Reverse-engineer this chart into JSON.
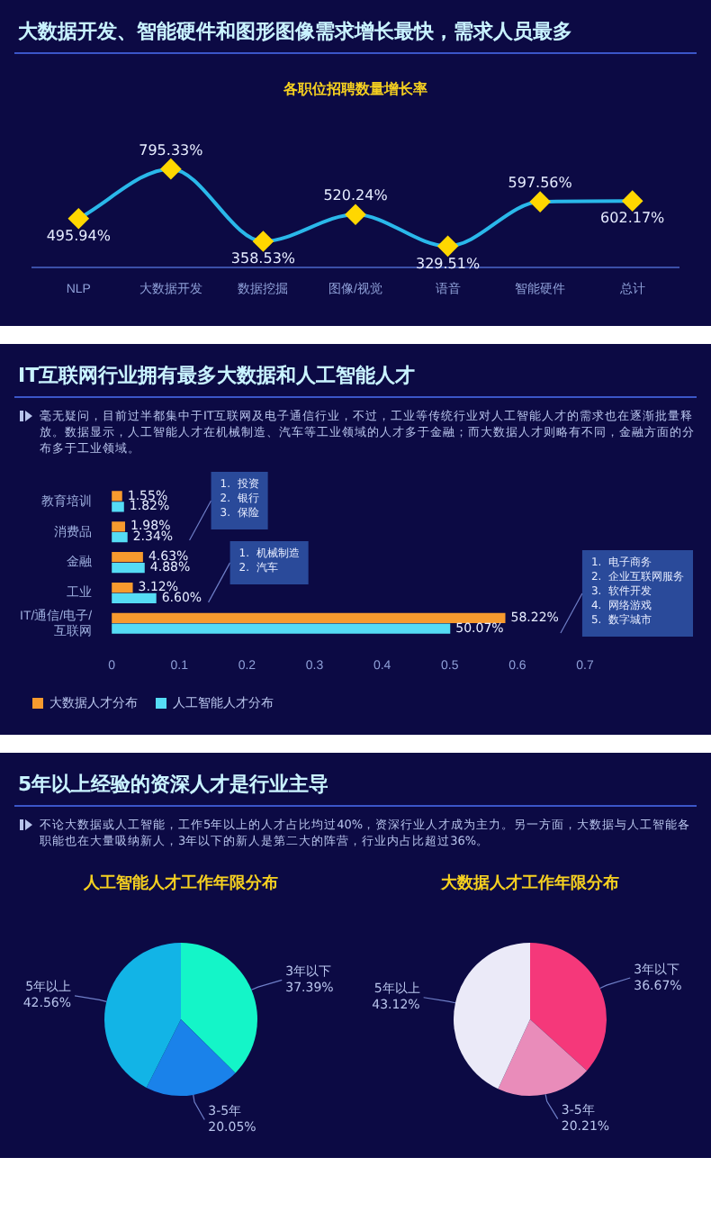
{
  "chart_data": [
    {
      "type": "line",
      "title": "大数据开发、智能硬件和图形图像需求增长最快，需求人员最多",
      "subtitle": "各职位招聘数量增长率",
      "categories": [
        "NLP",
        "大数据开发",
        "数据挖掘",
        "图像/视觉",
        "语音",
        "智能硬件",
        "总计"
      ],
      "marker": "diamond",
      "series": [
        {
          "color": "#2ab8ea",
          "colors": [
            "#ffd700",
            "#ffd700",
            "#ffd700",
            "#ffd700",
            "#ffd700",
            "#ffd700",
            "#ffd700"
          ],
          "values": [
            495.94,
            795.33,
            358.53,
            520.24,
            329.51,
            597.56,
            602.17
          ],
          "value_labels": [
            "495.94%",
            "795.33%",
            "358.53%",
            "520.24%",
            "329.51%",
            "597.56%",
            "602.17%"
          ]
        }
      ]
    },
    {
      "type": "bar",
      "orientation": "horizontal",
      "title": "IT互联网行业拥有最多大数据和人工智能人才",
      "subtitle": "毫无疑问，目前过半都集中于IT互联网及电子通信行业，不过，工业等传统行业对人工智能人才的需求也在逐渐批量释放。数据显示，人工智能人才在机械制造、汽车等工业领域的人才多于金融；而大数据人才则略有不同，金融方面的分布多于工业领域。",
      "categories": [
        "教育培训",
        "消费品",
        "金融",
        "工业",
        "IT/通信/电子/互联网"
      ],
      "xlim": [
        0,
        0.7
      ],
      "xticks": [
        0,
        0.1,
        0.2,
        0.3,
        0.4,
        0.5,
        0.6,
        0.7
      ],
      "legend": "bottom left",
      "series": [
        {
          "name": "大数据人才分布",
          "color": "#f79a2e",
          "values": [
            0.0155,
            0.0198,
            0.0463,
            0.0312,
            0.5822
          ],
          "value_labels": [
            "1.55%",
            "1.98%",
            "4.63%",
            "3.12%",
            "58.22%"
          ]
        },
        {
          "name": "人工智能人才分布",
          "color": "#55dcf5",
          "values": [
            0.0182,
            0.0234,
            0.0488,
            0.066,
            0.5007
          ],
          "value_labels": [
            "1.82%",
            "2.34%",
            "4.88%",
            "6.60%",
            "50.07%"
          ]
        }
      ],
      "annotations": [
        "1.  投资\n2.  银行\n3.  保险",
        "1.  机械制造\n2.  汽车",
        "1.  电子商务\n2.  企业互联网服务\n3.  软件开发\n4.  网络游戏\n5.  数字城市"
      ]
    },
    {
      "type": "other",
      "title": "5年以上经验的资深人才是行业主导",
      "subtitle": "不论大数据或人工智能，工作5年以上的人才占比均过40%，资深行业人才成为主力。另一方面，大数据与人工智能各职能也在大量吸纳新人，3年以下的新人是第二大的阵营，行业内占比超过36%。"
    },
    {
      "type": "pie",
      "title": "人工智能人才工作年限分布",
      "categories": [
        "3年以下",
        "3-5年",
        "5年以上"
      ],
      "values": [
        37.39,
        20.05,
        42.56
      ],
      "value_labels": [
        "37.39%",
        "20.05%",
        "42.56%"
      ],
      "colors": [
        "#14f5c8",
        "#1a82ea",
        "#12b4e6"
      ]
    },
    {
      "type": "pie",
      "title": "大数据人才工作年限分布",
      "categories": [
        "3年以下",
        "3-5年",
        "5年以上"
      ],
      "values": [
        36.67,
        20.21,
        43.12
      ],
      "value_labels": [
        "36.67%",
        "20.21%",
        "43.12%"
      ],
      "colors": [
        "#f5387a",
        "#e98cba",
        "#ebeaf8"
      ]
    }
  ]
}
